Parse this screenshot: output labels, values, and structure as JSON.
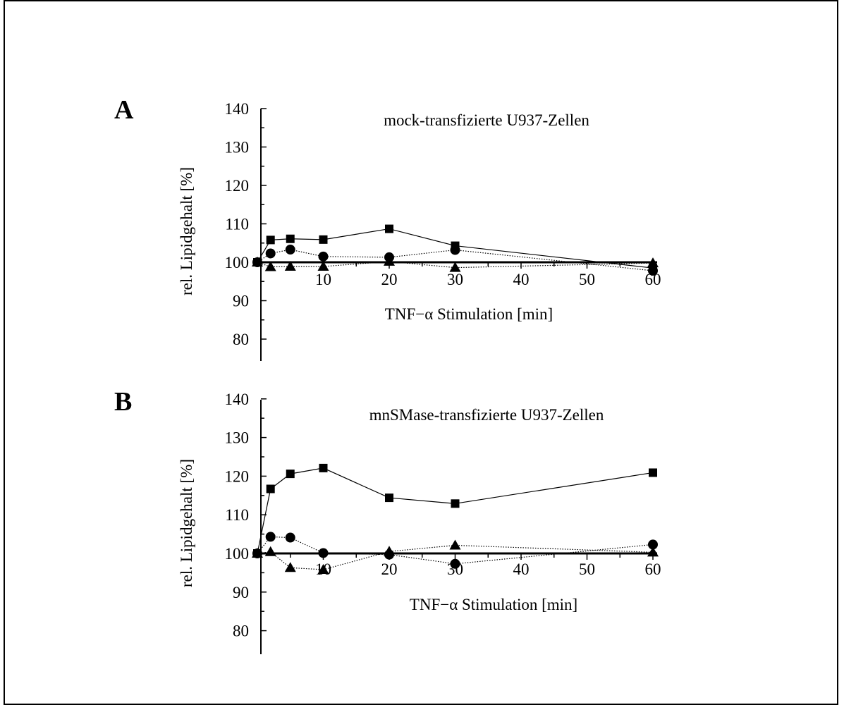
{
  "chart_data": [
    {
      "panel_label": "A",
      "type": "line",
      "title": "mock-transfizierte U937-Zellen",
      "xlabel": "TNF−α Stimulation [min]",
      "ylabel": "rel. Lipidgehalt [%]",
      "xlim": [
        0,
        60
      ],
      "ylim": [
        75,
        140
      ],
      "xticks": [
        10,
        20,
        30,
        40,
        50,
        60
      ],
      "yticks": [
        80,
        90,
        100,
        110,
        120,
        130,
        140
      ],
      "baseline": 100,
      "grid": false,
      "series": [
        {
          "marker": "square",
          "line": "solid",
          "x": [
            0,
            2,
            5,
            10,
            20,
            30,
            60
          ],
          "y": [
            100,
            105.8,
            106.1,
            105.9,
            108.7,
            104.3,
            98.5
          ]
        },
        {
          "marker": "circle",
          "line": "dotted",
          "x": [
            0,
            2,
            5,
            10,
            20,
            30,
            60
          ],
          "y": [
            100,
            102.3,
            103.3,
            101.5,
            101.3,
            103.2,
            97.8
          ]
        },
        {
          "marker": "triangle",
          "line": "dotted",
          "x": [
            0,
            2,
            5,
            10,
            20,
            30,
            60
          ],
          "y": [
            100,
            98.8,
            98.9,
            98.9,
            100.2,
            98.6,
            99.8
          ]
        }
      ]
    },
    {
      "panel_label": "B",
      "type": "line",
      "title": "mnSMase-transfizierte U937-Zellen",
      "xlabel": "TNF−α Stimulation [min]",
      "ylabel": "rel. Lipidgehalt [%]",
      "xlim": [
        0,
        60
      ],
      "ylim": [
        75,
        140
      ],
      "xticks": [
        10,
        20,
        30,
        40,
        50,
        60
      ],
      "yticks": [
        80,
        90,
        100,
        110,
        120,
        130,
        140
      ],
      "baseline": 100,
      "grid": false,
      "series": [
        {
          "marker": "square",
          "line": "solid",
          "x": [
            0,
            2,
            5,
            10,
            20,
            30,
            60
          ],
          "y": [
            100,
            116.7,
            120.6,
            122.1,
            114.4,
            112.9,
            120.9
          ]
        },
        {
          "marker": "circle",
          "line": "dotted",
          "x": [
            0,
            2,
            5,
            10,
            20,
            30,
            60
          ],
          "y": [
            100,
            104.3,
            104.1,
            100.1,
            99.7,
            97.3,
            102.3
          ]
        },
        {
          "marker": "triangle",
          "line": "dotted",
          "x": [
            0,
            2,
            5,
            10,
            20,
            30,
            60
          ],
          "y": [
            100,
            100.4,
            96.3,
            95.8,
            100.5,
            102.1,
            100.3
          ]
        }
      ]
    }
  ]
}
